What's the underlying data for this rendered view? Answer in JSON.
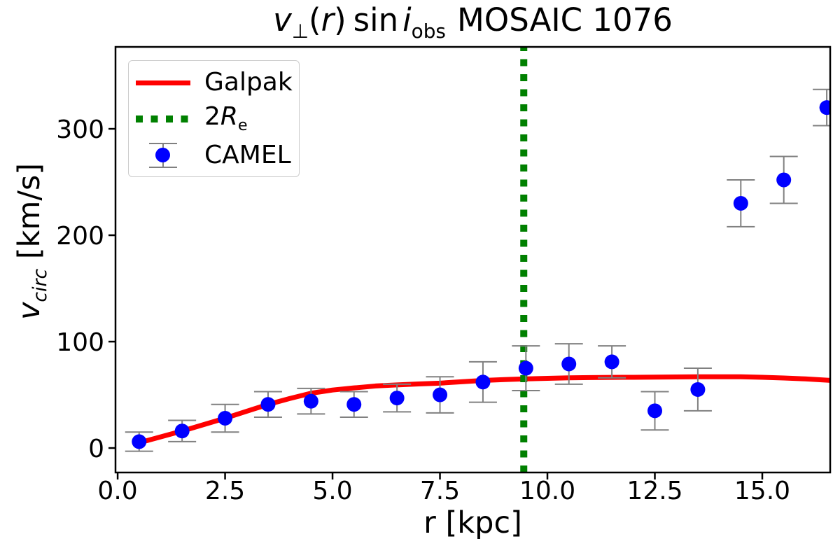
{
  "figure": {
    "title": {
      "var_v": "v",
      "sub_perp": "⊥",
      "open_paren": "(",
      "var_r": "r",
      "close_paren": ")",
      "sin": "sin",
      "var_i": "i",
      "sub_obs": "obs",
      "galaxy": "MOSAIC 1076"
    },
    "xlabel": "r [kpc]",
    "ylabel": {
      "var_v": "v",
      "sub_circ": "circ",
      "units": " [km/s]"
    }
  },
  "legend": {
    "galpak_label": "Galpak",
    "re_prefix": "2",
    "re_R": "R",
    "re_sub": "e",
    "camel_label": "CAMEL"
  },
  "chart_data": {
    "type": "scatter",
    "title": "v⊥(r) sin i_obs MOSAIC 1076",
    "xlabel": "r [kpc]",
    "ylabel": "v_circ [km/s]",
    "xlim": [
      -0.05,
      16.58
    ],
    "ylim": [
      -23,
      377
    ],
    "grid": false,
    "legend_position": "upper left",
    "x_ticks": {
      "values": [
        0,
        2.5,
        5,
        7.5,
        10,
        12.5,
        15
      ],
      "labels": [
        "0.0",
        "2.5",
        "5.0",
        "7.5",
        "10.0",
        "12.5",
        "15.0"
      ]
    },
    "y_ticks": {
      "values": [
        0,
        100,
        200,
        300
      ],
      "labels": [
        "0",
        "100",
        "200",
        "300"
      ]
    },
    "colors": {
      "galpak": "#ff0000",
      "re_line": "#008000",
      "camel": "#0000ff",
      "errorbar": "#808080",
      "frame": "#000000"
    },
    "series": [
      {
        "name": "Galpak",
        "type": "line",
        "color": "#ff0000",
        "x": [
          0.5,
          1.0,
          1.5,
          2.0,
          2.5,
          3.0,
          3.5,
          4.0,
          4.5,
          5.0,
          5.5,
          6.0,
          6.5,
          7.0,
          7.5,
          8.0,
          8.5,
          9.0,
          9.5,
          10.0,
          10.5,
          11.0,
          11.5,
          12.0,
          12.5,
          13.0,
          13.5,
          14.0,
          14.5,
          15.0,
          15.5,
          16.0,
          16.58
        ],
        "y": [
          5,
          10.5,
          16,
          22,
          28,
          34.5,
          41,
          46.5,
          51.5,
          54.5,
          56.5,
          58.3,
          59.3,
          60.2,
          61,
          62.3,
          63.5,
          64.3,
          65,
          65.5,
          66,
          66.2,
          66.4,
          66.5,
          66.6,
          66.8,
          67,
          67,
          67,
          66.5,
          65.8,
          65,
          63.6
        ]
      },
      {
        "name": "2Re",
        "type": "vline",
        "color": "#008000",
        "x": 9.45,
        "dash": [
          10,
          11.5
        ],
        "width": 10
      },
      {
        "name": "CAMEL",
        "type": "scatter",
        "color": "#0000ff",
        "x": [
          0.5,
          1.5,
          2.5,
          3.5,
          4.5,
          5.5,
          6.5,
          7.5,
          8.5,
          9.5,
          10.5,
          11.5,
          12.5,
          13.5,
          14.5,
          15.5,
          16.5
        ],
        "y": [
          6,
          16,
          28,
          41,
          44,
          41,
          47,
          50,
          62,
          75,
          79,
          81,
          35,
          55,
          230,
          252,
          320
        ],
        "yerr": [
          9,
          10,
          13,
          12,
          12,
          12,
          13,
          17,
          19,
          21,
          19,
          15,
          18,
          20,
          22,
          22,
          17
        ]
      }
    ]
  }
}
